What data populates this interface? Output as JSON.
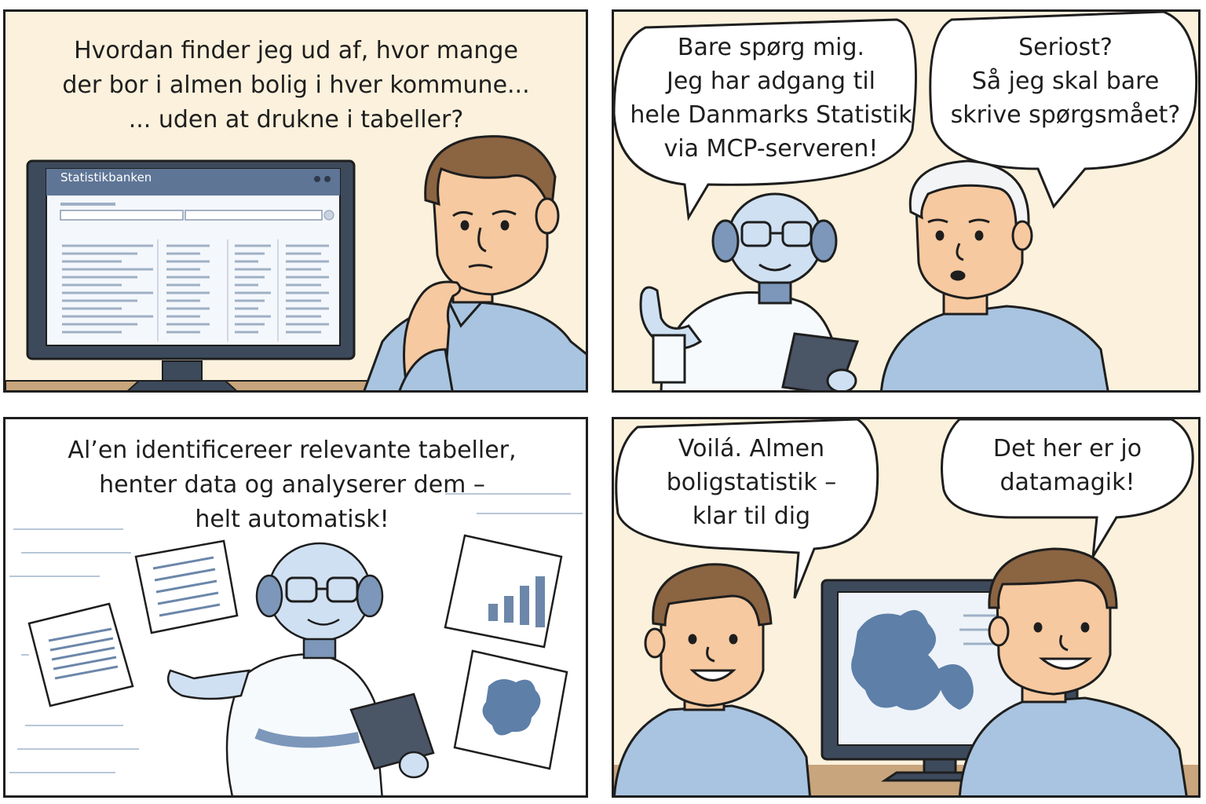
{
  "panel1": {
    "caption": [
      "Hvordan finder jeg ud af, hvor mange",
      "der bor i almen bolig i hver kommune...",
      "... uden at drukne i tabeller?"
    ],
    "window_title": "Statistikbanken"
  },
  "panel2": {
    "bubble_left": [
      "Bare spørg mig.",
      "Jeg har adgang til",
      "hele Danmarks Statistik",
      "via MCP-serveren!"
    ],
    "bubble_right": [
      "Seriost?",
      "Så jeg skal bare",
      "skrive spørgsmået?"
    ]
  },
  "panel3": {
    "caption": [
      "Al’en identificereer relevante tabeller,",
      "henter data og analyserer dem –",
      "helt automatisk!"
    ]
  },
  "panel4": {
    "bubble_left": [
      "Voilá. Almen",
      "boligstatistik –",
      "klar til dig"
    ],
    "bubble_right": [
      "Det her er jo",
      "datamagik!"
    ]
  },
  "colors": {
    "panel_bg": "#fbf1dc",
    "shirt": "#a9c4e0",
    "skin": "#f6c9a0",
    "hair": "#8b6442",
    "robot": "#cfe0f2",
    "outline": "#1e1e1e",
    "map": "#5d7fa8"
  }
}
